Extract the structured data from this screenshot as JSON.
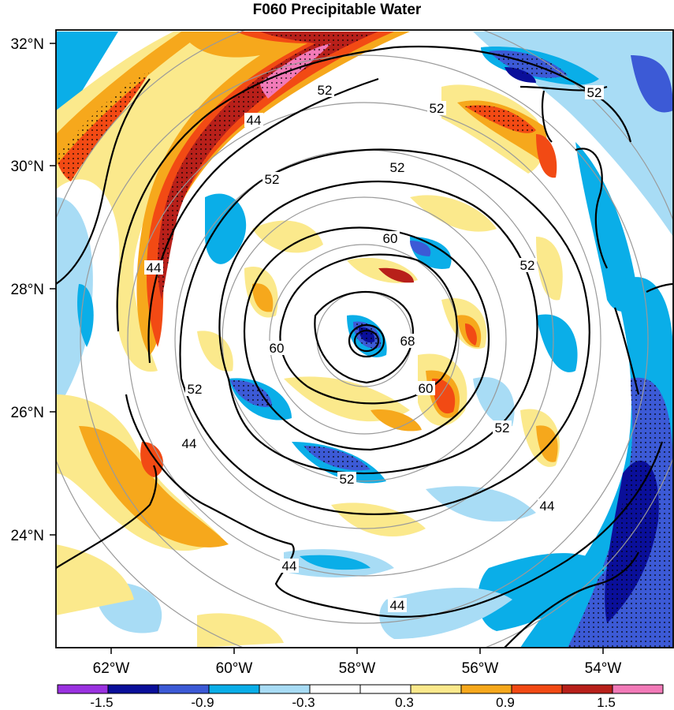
{
  "title": "F060 Precipitable Water",
  "lat_labels": [
    "32°N",
    "30°N",
    "28°N",
    "26°N",
    "24°N"
  ],
  "lon_labels": [
    "62°W",
    "60°W",
    "58°W",
    "56°W",
    "54°W"
  ],
  "contour_labels": [
    "52",
    "44",
    "52",
    "52",
    "44",
    "52",
    "60",
    "60",
    "68",
    "60",
    "52",
    "52",
    "44",
    "52",
    "44",
    "44",
    "44",
    "52",
    "52"
  ],
  "colorbar": {
    "labels": [
      "-1.5",
      "-0.9",
      "-0.3",
      "0.3",
      "0.9",
      "1.5"
    ],
    "colors": [
      "#9a32e0",
      "#0a0f9a",
      "#3c5ad6",
      "#0aaee8",
      "#a8dcf5",
      "#ffffff",
      "#ffffff",
      "#fbe98c",
      "#f6a81c",
      "#f24a14",
      "#b8201a",
      "#f27ab8"
    ]
  }
}
